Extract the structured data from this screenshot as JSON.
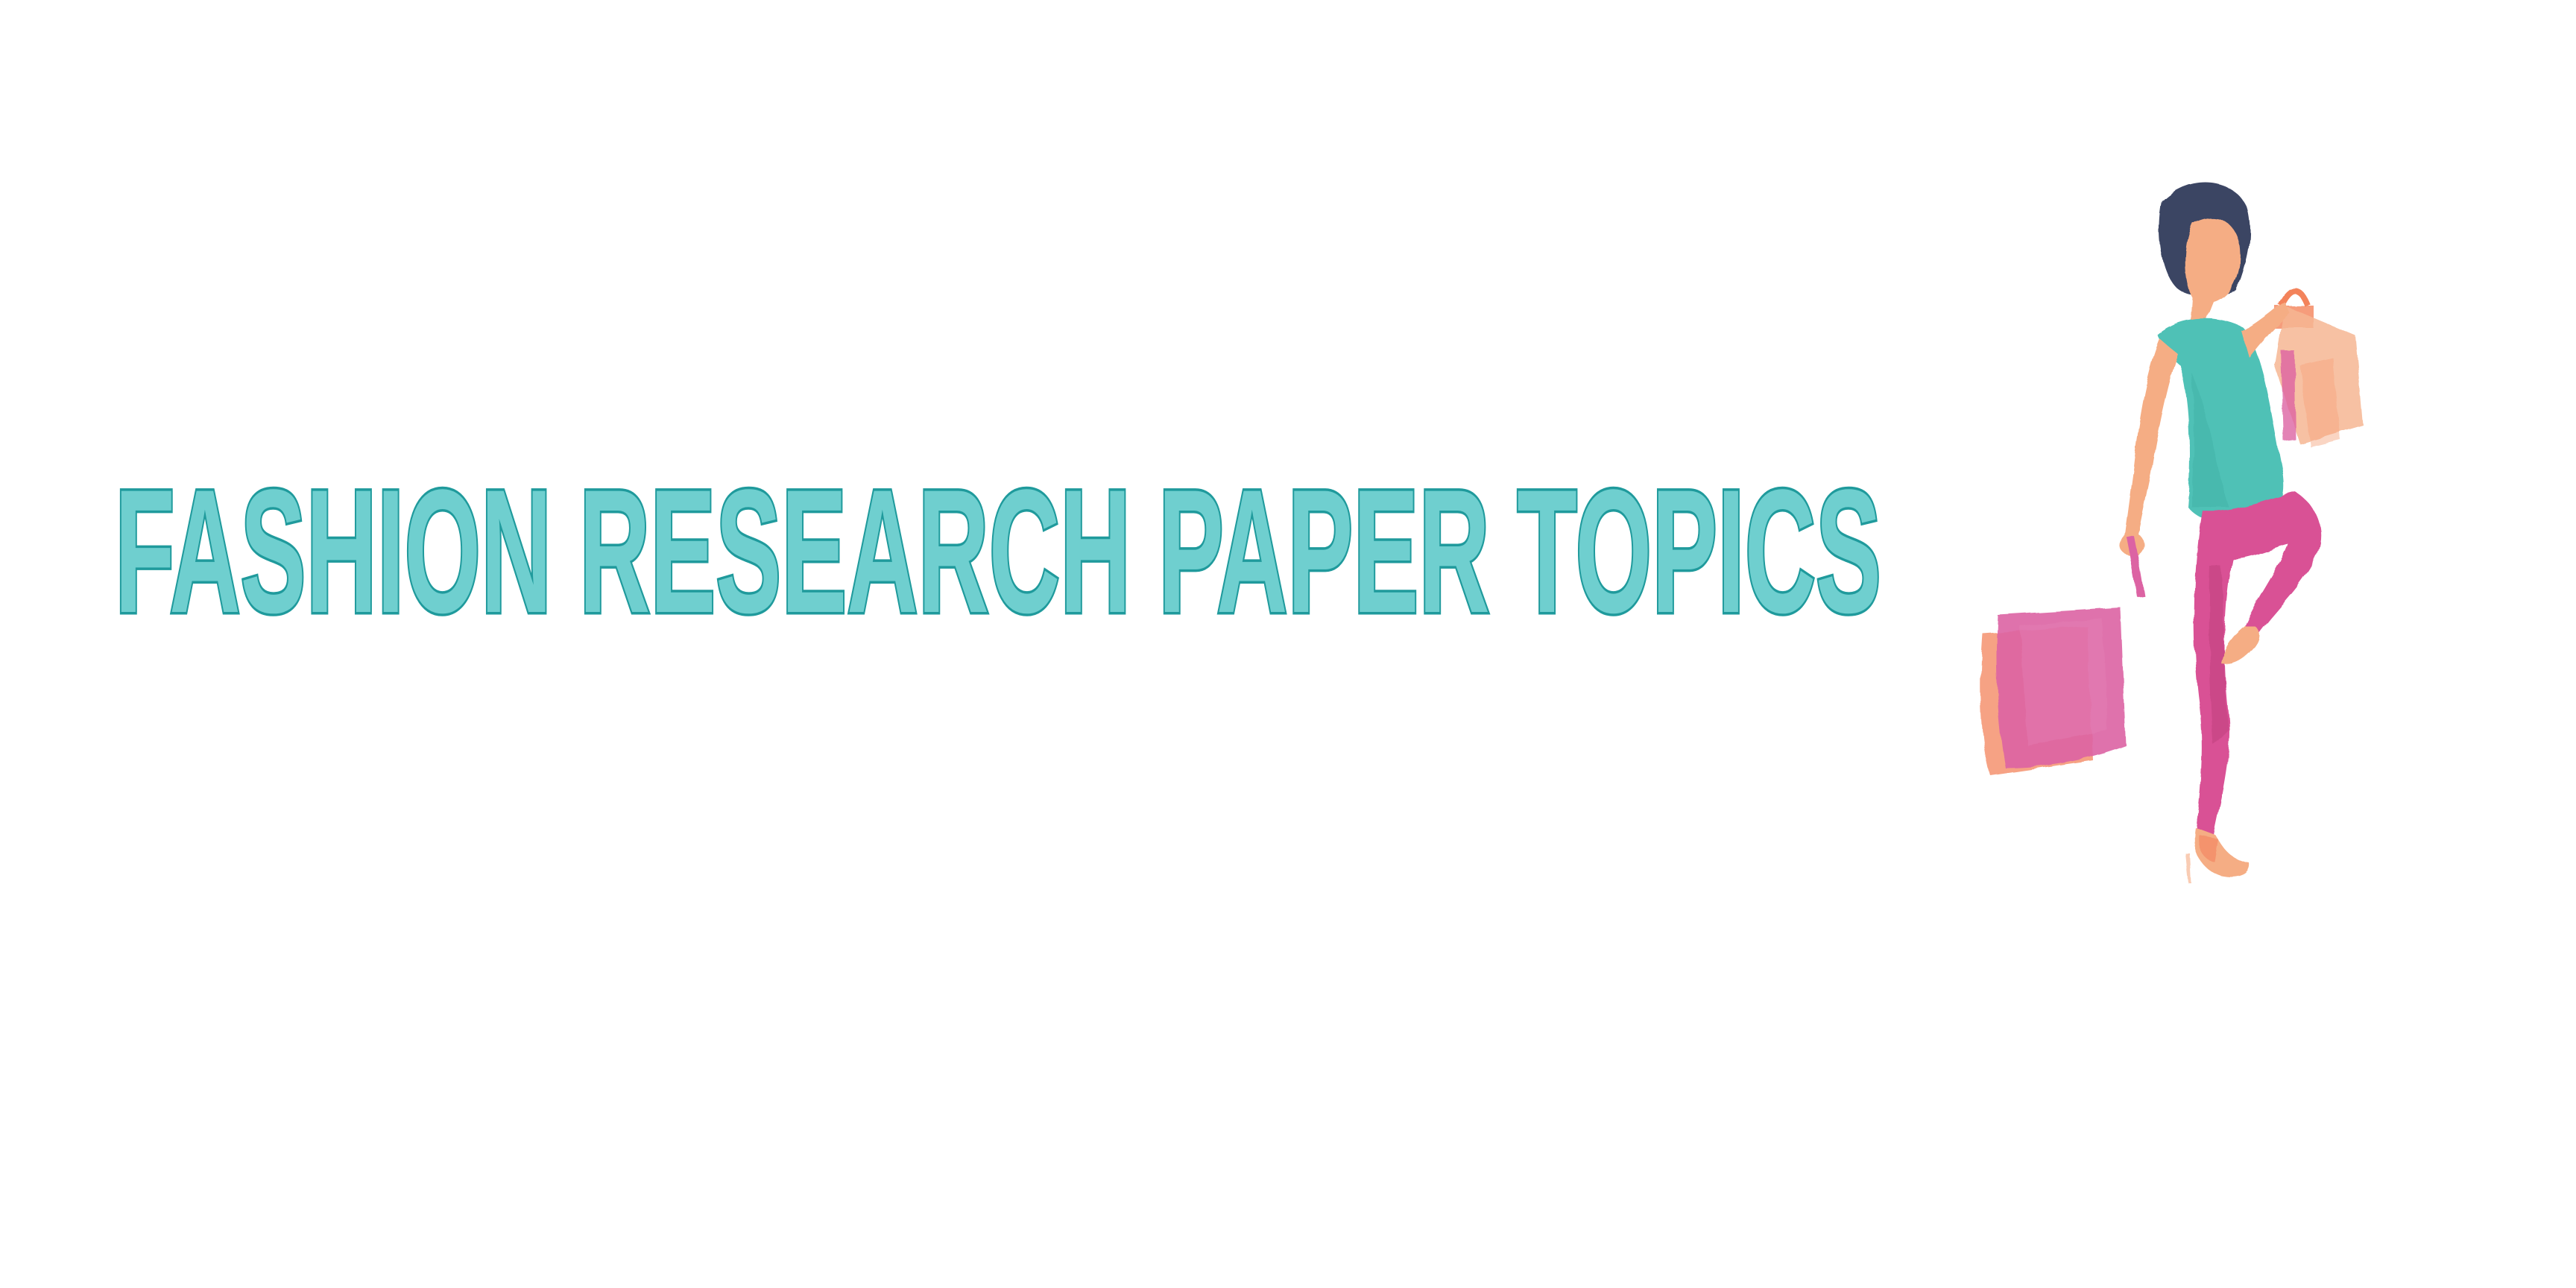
{
  "page": {
    "title": "FASHION RESEARCH PAPER TOPICS",
    "background_color": "#ffffff"
  },
  "colors": {
    "title_fill": "#6fcfcf",
    "title_stroke": "#1f9a9c",
    "dress": "#3fbcb0",
    "hair": "#2b3457",
    "skin": "#f5a67a",
    "leggings": "#d6428c",
    "bag_pink": "#d9559b",
    "bag_peach": "#f6b08a",
    "bag_orange": "#f2784e"
  },
  "illustration": {
    "icon": "shopping-woman-icon"
  }
}
